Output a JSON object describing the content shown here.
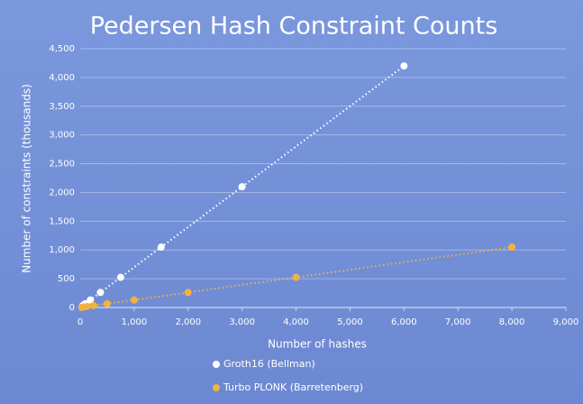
{
  "chart_data": {
    "type": "scatter",
    "title": "Pedersen Hash Constraint Counts",
    "x_label": "Number of hashes",
    "y_label": "Number of constraints (thousands)",
    "xlim": [
      0,
      9000
    ],
    "ylim": [
      0,
      4500
    ],
    "xticks": [
      0,
      {
        "value": 1000,
        "label": "1,000"
      },
      {
        "value": 2000,
        "label": "2,000"
      },
      {
        "value": 3000,
        "label": "3,000"
      },
      {
        "value": 4000,
        "label": "4,000"
      },
      {
        "value": 5000,
        "label": "5,000"
      },
      {
        "value": 6000,
        "label": "6,000"
      },
      {
        "value": 7000,
        "label": "7,000"
      },
      {
        "value": 8000,
        "label": "8,000"
      },
      {
        "value": 9000,
        "label": "9,000"
      }
    ],
    "yticks": [
      0,
      500,
      {
        "value": 1000,
        "label": "1,000"
      },
      {
        "value": 1500,
        "label": "1,500"
      },
      {
        "value": 2000,
        "label": "2,000"
      },
      {
        "value": 2500,
        "label": "2,500"
      },
      {
        "value": 3000,
        "label": "3,000"
      },
      {
        "value": 3500,
        "label": "3,500"
      },
      {
        "value": 4000,
        "label": "4,000"
      },
      {
        "value": 4500,
        "label": "4,500"
      }
    ],
    "grid": true,
    "legend": "bottom",
    "series": [
      {
        "name": "Groth16 (Bellman)",
        "color": "#ffffff",
        "x": [
          47,
          94,
          188,
          375,
          750,
          1500,
          3000,
          6000
        ],
        "values": [
          33,
          66,
          131,
          262,
          525,
          1050,
          2100,
          4200
        ]
      },
      {
        "name": "Turbo PLONK (Barretenberg)",
        "color": "#f2b33d",
        "x": [
          31,
          62,
          125,
          250,
          500,
          1000,
          2000,
          4000,
          8000
        ],
        "values": [
          4,
          8,
          16,
          33,
          66,
          131,
          262,
          525,
          1050
        ]
      }
    ]
  }
}
